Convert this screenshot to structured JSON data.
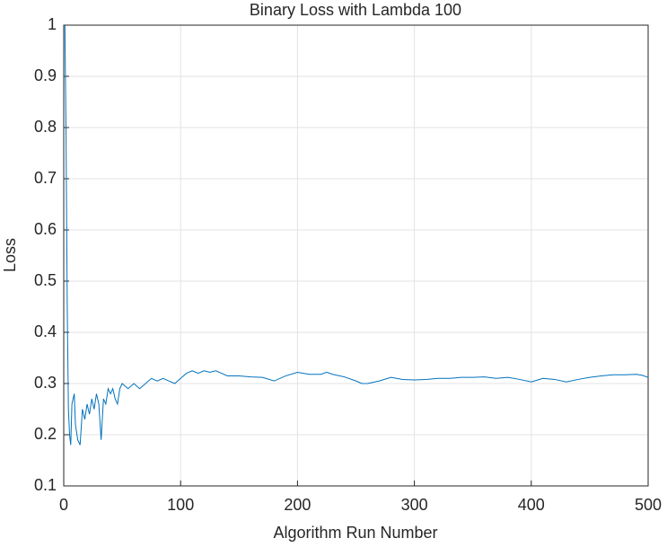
{
  "chart_data": {
    "type": "line",
    "title": "Binary Loss with Lambda 100",
    "xlabel": "Algorithm Run Number",
    "ylabel": "Loss",
    "x": [
      1,
      2,
      3,
      4,
      5,
      6,
      7,
      8,
      9,
      10,
      12,
      14,
      16,
      18,
      20,
      22,
      24,
      26,
      28,
      30,
      32,
      34,
      36,
      38,
      40,
      42,
      44,
      46,
      48,
      50,
      55,
      60,
      65,
      70,
      75,
      80,
      85,
      90,
      95,
      100,
      105,
      110,
      115,
      120,
      125,
      130,
      135,
      140,
      150,
      160,
      170,
      180,
      190,
      200,
      210,
      220,
      225,
      230,
      240,
      250,
      255,
      260,
      270,
      280,
      290,
      300,
      310,
      320,
      330,
      340,
      350,
      360,
      370,
      380,
      390,
      400,
      410,
      420,
      430,
      440,
      450,
      460,
      470,
      480,
      490,
      495,
      500
    ],
    "values": [
      1.0,
      0.78,
      0.45,
      0.25,
      0.2,
      0.18,
      0.26,
      0.27,
      0.28,
      0.22,
      0.19,
      0.18,
      0.25,
      0.23,
      0.26,
      0.24,
      0.27,
      0.25,
      0.28,
      0.26,
      0.19,
      0.27,
      0.26,
      0.29,
      0.28,
      0.29,
      0.27,
      0.26,
      0.29,
      0.3,
      0.29,
      0.3,
      0.29,
      0.3,
      0.31,
      0.305,
      0.31,
      0.305,
      0.3,
      0.31,
      0.32,
      0.325,
      0.32,
      0.325,
      0.322,
      0.325,
      0.32,
      0.315,
      0.315,
      0.313,
      0.312,
      0.305,
      0.315,
      0.322,
      0.318,
      0.318,
      0.322,
      0.318,
      0.313,
      0.305,
      0.3,
      0.3,
      0.305,
      0.312,
      0.308,
      0.307,
      0.308,
      0.31,
      0.31,
      0.312,
      0.312,
      0.313,
      0.31,
      0.312,
      0.308,
      0.303,
      0.31,
      0.308,
      0.303,
      0.308,
      0.312,
      0.315,
      0.317,
      0.317,
      0.318,
      0.316,
      0.312
    ],
    "color": "#0072bd",
    "xlim": [
      0,
      500
    ],
    "xticks": [
      0,
      100,
      200,
      300,
      400,
      500
    ],
    "ylim": [
      0.1,
      1
    ],
    "yticks": [
      0.1,
      0.2,
      0.3,
      0.4,
      0.5,
      0.6,
      0.7,
      0.8,
      0.9,
      1
    ],
    "grid": true
  }
}
